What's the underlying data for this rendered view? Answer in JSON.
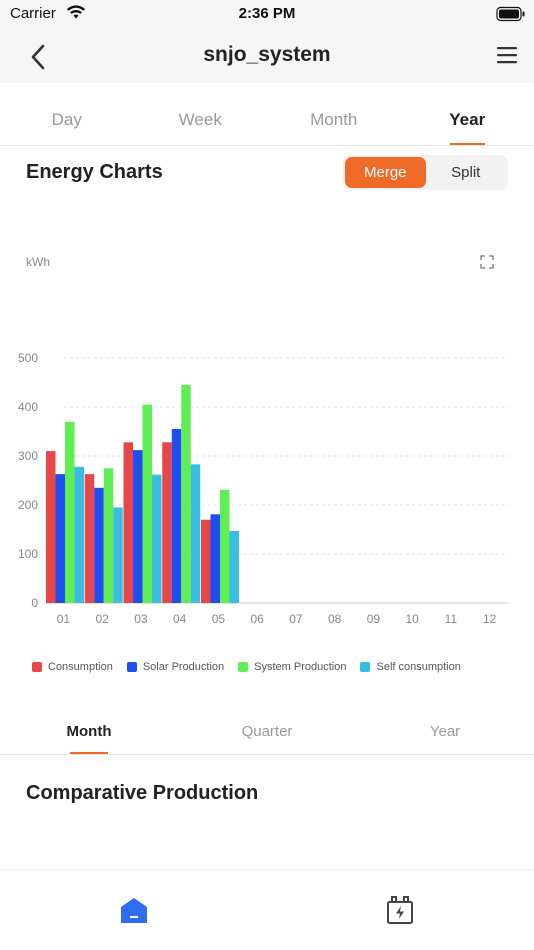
{
  "status_bar": {
    "carrier": "Carrier",
    "time": "2:36 PM"
  },
  "nav": {
    "title": "snjo_system"
  },
  "period_tabs": [
    {
      "label": "Day",
      "active": false
    },
    {
      "label": "Week",
      "active": false
    },
    {
      "label": "Month",
      "active": false
    },
    {
      "label": "Year",
      "active": true
    }
  ],
  "energy": {
    "title": "Energy Charts",
    "merge_label": "Merge",
    "split_label": "Split"
  },
  "colors": {
    "accent": "#ef6a27"
  },
  "chart_data": {
    "type": "bar",
    "ylabel": "kWh",
    "ylim": [
      0,
      500
    ],
    "yticks": [
      "0",
      "100",
      "200",
      "300",
      "400",
      "500"
    ],
    "categories": [
      "01",
      "02",
      "03",
      "04",
      "05",
      "06",
      "07",
      "08",
      "09",
      "10",
      "11",
      "12"
    ],
    "grid": true,
    "legend_position": "bottom",
    "series": [
      {
        "name": "Consumption",
        "color": "#e8474a",
        "values": [
          310,
          263,
          328,
          328,
          170,
          null,
          null,
          null,
          null,
          null,
          null,
          null
        ]
      },
      {
        "name": "Solar Production",
        "color": "#1f4ef0",
        "values": [
          263,
          235,
          312,
          355,
          181,
          null,
          null,
          null,
          null,
          null,
          null,
          null
        ]
      },
      {
        "name": "System Production",
        "color": "#5fef54",
        "values": [
          370,
          275,
          405,
          445,
          231,
          null,
          null,
          null,
          null,
          null,
          null,
          null
        ]
      },
      {
        "name": "Self consumption",
        "color": "#39bde3",
        "values": [
          278,
          195,
          262,
          283,
          147,
          null,
          null,
          null,
          null,
          null,
          null,
          null
        ]
      }
    ]
  },
  "sub_tabs": [
    {
      "label": "Month",
      "active": true
    },
    {
      "label": "Quarter",
      "active": false
    },
    {
      "label": "Year",
      "active": false
    }
  ],
  "compare": {
    "title": "Comparative Production"
  },
  "tab_bar": {
    "items": [
      "home-icon",
      "battery-charge-icon"
    ]
  }
}
